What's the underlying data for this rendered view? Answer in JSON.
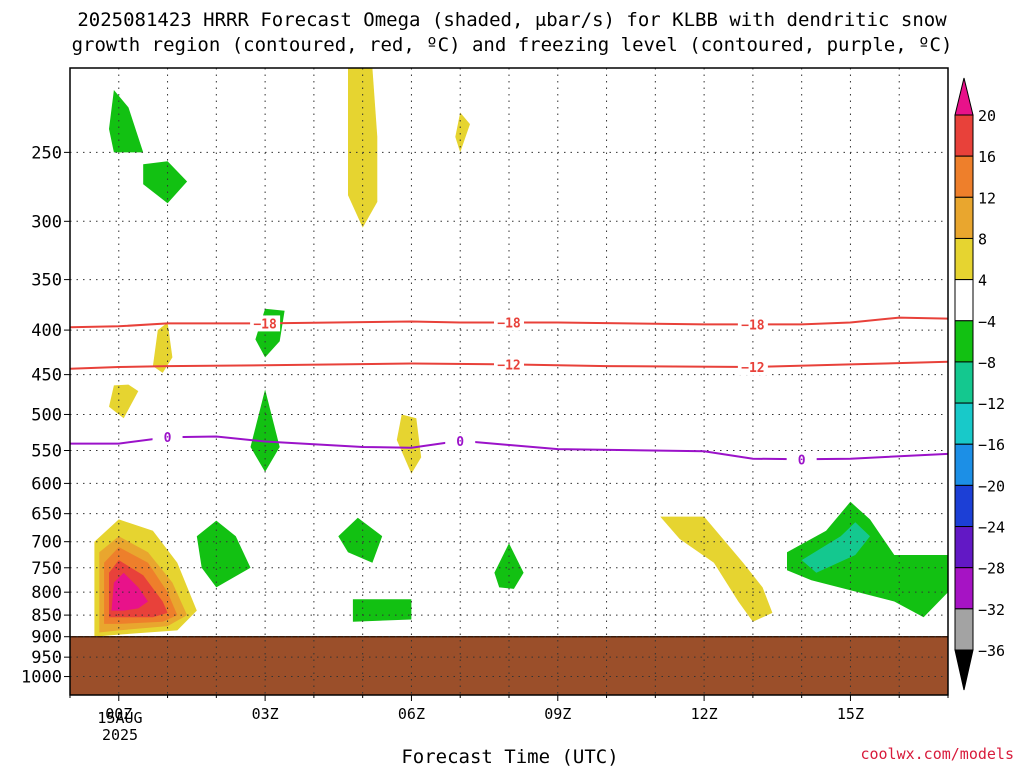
{
  "title_line1": "2025081423 HRRR Forecast Omega (shaded, μbar/s) for KLBB with dendritic snow",
  "title_line2": "growth region (contoured, red, ºC) and freezing level (contoured, purple, ºC)",
  "credit": "coolwx.com/models",
  "chart_data": {
    "type": "heatmap",
    "xlabel": "Forecast Time (UTC)",
    "ylabel": "",
    "x_tick_labels": [
      "00Z",
      "03Z",
      "06Z",
      "09Z",
      "12Z",
      "15Z"
    ],
    "x_tick_hours": [
      0,
      3,
      6,
      9,
      12,
      15
    ],
    "date_label": [
      "15AUG",
      "2025"
    ],
    "xlim_hours": [
      -1,
      17
    ],
    "y_axis": "pressure (hPa), log scale, reversed",
    "ylim": [
      1050,
      200
    ],
    "y_tick_labels": [
      "250",
      "300",
      "350",
      "400",
      "450",
      "500",
      "550",
      "600",
      "650",
      "700",
      "750",
      "800",
      "850",
      "900",
      "950",
      "1000"
    ],
    "y_ticks": [
      250,
      300,
      350,
      400,
      450,
      500,
      550,
      600,
      650,
      700,
      750,
      800,
      850,
      900,
      950,
      1000
    ],
    "grid": true,
    "terrain_surface_pressure": 900,
    "colorbar": {
      "position": "right",
      "labels": [
        "20",
        "16",
        "12",
        "8",
        "4",
        "−4",
        "−8",
        "−12",
        "−16",
        "−20",
        "−24",
        "−28",
        "−32",
        "−36"
      ],
      "levels": [
        20,
        16,
        12,
        8,
        4,
        -4,
        -8,
        -12,
        -16,
        -20,
        -24,
        -28,
        -32,
        -36
      ],
      "bins": [
        {
          "range": "> 20",
          "color": "#e8128a"
        },
        {
          "range": "16 to 20",
          "color": "#e8413a"
        },
        {
          "range": "12 to 16",
          "color": "#ee7f2b"
        },
        {
          "range": "8 to 12",
          "color": "#e9a62e"
        },
        {
          "range": "4 to 8",
          "color": "#e6d430"
        },
        {
          "range": "-4 to 4",
          "color": "#ffffff"
        },
        {
          "range": "-8 to -4",
          "color": "#12c112"
        },
        {
          "range": "-12 to -8",
          "color": "#14c88f"
        },
        {
          "range": "-16 to -12",
          "color": "#18c9c9"
        },
        {
          "range": "-20 to -16",
          "color": "#1c8fe6"
        },
        {
          "range": "-24 to -20",
          "color": "#1c3fd6"
        },
        {
          "range": "-28 to -24",
          "color": "#6218c5"
        },
        {
          "range": "-32 to -28",
          "color": "#a613c4"
        },
        {
          "range": "-36 to -32",
          "color": "#a3a3a3"
        },
        {
          "range": "< -36",
          "color": "#000000"
        }
      ]
    },
    "contours": [
      {
        "label": "-18",
        "color": "#e8413a",
        "points": [
          [
            -1,
            397
          ],
          [
            0,
            396
          ],
          [
            1,
            393
          ],
          [
            3,
            393
          ],
          [
            6,
            391
          ],
          [
            7,
            392
          ],
          [
            9,
            392
          ],
          [
            12,
            394
          ],
          [
            14,
            394
          ],
          [
            15,
            392
          ],
          [
            16,
            387
          ],
          [
            17,
            388
          ]
        ],
        "label_hours": [
          3,
          8,
          13
        ]
      },
      {
        "label": "-12",
        "color": "#e8413a",
        "points": [
          [
            -1,
            443
          ],
          [
            0,
            441
          ],
          [
            1,
            440
          ],
          [
            3,
            439
          ],
          [
            6,
            437
          ],
          [
            8,
            438
          ],
          [
            10,
            440
          ],
          [
            13,
            441
          ],
          [
            15,
            438
          ],
          [
            17,
            435
          ]
        ],
        "label_hours": [
          8,
          13
        ]
      },
      {
        "label": "0",
        "color": "#9b12c9",
        "points": [
          [
            -1,
            540
          ],
          [
            0,
            540
          ],
          [
            1,
            531
          ],
          [
            2,
            530
          ],
          [
            3,
            537
          ],
          [
            5,
            545
          ],
          [
            6,
            546
          ],
          [
            7,
            536
          ],
          [
            9,
            548
          ],
          [
            12,
            551
          ],
          [
            13,
            562
          ],
          [
            14,
            563
          ],
          [
            15,
            562
          ],
          [
            17,
            555
          ]
        ],
        "label_hours": [
          1,
          7,
          14
        ]
      }
    ],
    "shaded_regions": [
      {
        "bin": "4 to 8",
        "points": [
          [
            -0.5,
            900
          ],
          [
            -0.5,
            700
          ],
          [
            0,
            660
          ],
          [
            0.7,
            680
          ],
          [
            1.2,
            740
          ],
          [
            1.6,
            840
          ],
          [
            1.2,
            885
          ],
          [
            0,
            895
          ]
        ]
      },
      {
        "bin": "8 to 12",
        "points": [
          [
            -0.4,
            890
          ],
          [
            -0.4,
            720
          ],
          [
            0,
            690
          ],
          [
            0.6,
            720
          ],
          [
            1.1,
            780
          ],
          [
            1.4,
            850
          ],
          [
            1,
            875
          ],
          [
            0,
            885
          ]
        ]
      },
      {
        "bin": "12 to 16",
        "points": [
          [
            -0.3,
            870
          ],
          [
            -0.3,
            740
          ],
          [
            0,
            710
          ],
          [
            0.6,
            740
          ],
          [
            1.0,
            800
          ],
          [
            1.2,
            850
          ],
          [
            0.9,
            865
          ],
          [
            0,
            870
          ]
        ]
      },
      {
        "bin": "16 to 20",
        "points": [
          [
            -0.2,
            855
          ],
          [
            -0.2,
            760
          ],
          [
            0,
            735
          ],
          [
            0.5,
            765
          ],
          [
            0.9,
            820
          ],
          [
            1.0,
            845
          ],
          [
            0.7,
            855
          ],
          [
            0,
            855
          ]
        ]
      },
      {
        "bin": "> 20",
        "points": [
          [
            -0.15,
            840
          ],
          [
            -0.1,
            780
          ],
          [
            0.1,
            760
          ],
          [
            0.4,
            790
          ],
          [
            0.6,
            820
          ],
          [
            0.4,
            835
          ],
          [
            0.1,
            840
          ]
        ]
      },
      {
        "bin": "-8 to -4",
        "points": [
          [
            -0.2,
            235
          ],
          [
            -0.1,
            212
          ],
          [
            0.2,
            222
          ],
          [
            0.5,
            250
          ],
          [
            -0.1,
            250
          ]
        ]
      },
      {
        "bin": "-8 to -4",
        "points": [
          [
            0.5,
            258
          ],
          [
            1.0,
            256
          ],
          [
            1.4,
            270
          ],
          [
            1.0,
            286
          ],
          [
            0.5,
            272
          ]
        ]
      },
      {
        "bin": "4 to 8",
        "points": [
          [
            0.7,
            440
          ],
          [
            0.8,
            400
          ],
          [
            1.0,
            392
          ],
          [
            1.1,
            430
          ],
          [
            0.9,
            448
          ]
        ]
      },
      {
        "bin": "4 to 8",
        "points": [
          [
            -0.2,
            490
          ],
          [
            -0.1,
            463
          ],
          [
            0.2,
            462
          ],
          [
            0.4,
            470
          ],
          [
            0.1,
            505
          ]
        ]
      },
      {
        "bin": "-8 to -4",
        "points": [
          [
            1.6,
            690
          ],
          [
            2.0,
            662
          ],
          [
            2.4,
            690
          ],
          [
            2.7,
            750
          ],
          [
            2.0,
            790
          ],
          [
            1.7,
            750
          ]
        ]
      },
      {
        "bin": "-8 to -4",
        "points": [
          [
            2.8,
            410
          ],
          [
            3.0,
            378
          ],
          [
            3.4,
            380
          ],
          [
            3.3,
            412
          ],
          [
            3.0,
            430
          ]
        ]
      },
      {
        "bin": "-8 to -4",
        "points": [
          [
            2.7,
            545
          ],
          [
            3.0,
            468
          ],
          [
            3.3,
            545
          ],
          [
            3.0,
            582
          ]
        ]
      },
      {
        "bin": "4 to 8",
        "points": [
          [
            4.7,
            280
          ],
          [
            4.7,
            200
          ],
          [
            5.2,
            200
          ],
          [
            5.3,
            240
          ],
          [
            5.3,
            285
          ],
          [
            5.0,
            305
          ]
        ]
      },
      {
        "bin": "4 to 8",
        "points": [
          [
            6.9,
            240
          ],
          [
            7.0,
            225
          ],
          [
            7.2,
            232
          ],
          [
            7.0,
            250
          ]
        ]
      },
      {
        "bin": "-8 to -4",
        "points": [
          [
            4.5,
            690
          ],
          [
            4.9,
            657
          ],
          [
            5.4,
            690
          ],
          [
            5.2,
            740
          ],
          [
            4.7,
            720
          ]
        ]
      },
      {
        "bin": "-8 to -4",
        "points": [
          [
            4.8,
            815
          ],
          [
            6.0,
            815
          ],
          [
            6.0,
            860
          ],
          [
            4.8,
            865
          ]
        ]
      },
      {
        "bin": "4 to 8",
        "points": [
          [
            5.7,
            535
          ],
          [
            5.8,
            500
          ],
          [
            6.1,
            505
          ],
          [
            6.2,
            560
          ],
          [
            6.0,
            585
          ]
        ]
      },
      {
        "bin": "-8 to -4",
        "points": [
          [
            7.7,
            760
          ],
          [
            8.0,
            703
          ],
          [
            8.3,
            760
          ],
          [
            8.1,
            793
          ],
          [
            7.8,
            790
          ]
        ]
      },
      {
        "bin": "4 to 8",
        "points": [
          [
            11.1,
            655
          ],
          [
            12.0,
            655
          ],
          [
            12.8,
            740
          ],
          [
            13.2,
            790
          ],
          [
            13.4,
            845
          ],
          [
            13.0,
            865
          ],
          [
            12.7,
            820
          ],
          [
            12.2,
            740
          ],
          [
            11.5,
            695
          ]
        ]
      },
      {
        "bin": "-8 to -4",
        "points": [
          [
            13.7,
            720
          ],
          [
            14.5,
            680
          ],
          [
            15.0,
            630
          ],
          [
            15.4,
            660
          ],
          [
            15.9,
            725
          ],
          [
            17,
            725
          ],
          [
            17,
            800
          ],
          [
            16.5,
            855
          ],
          [
            15.9,
            820
          ],
          [
            14.2,
            775
          ],
          [
            13.7,
            755
          ]
        ]
      },
      {
        "bin": "-12 to -8",
        "points": [
          [
            14.0,
            735
          ],
          [
            14.8,
            690
          ],
          [
            15.1,
            665
          ],
          [
            15.4,
            690
          ],
          [
            15.1,
            725
          ],
          [
            14.3,
            760
          ]
        ]
      }
    ]
  }
}
